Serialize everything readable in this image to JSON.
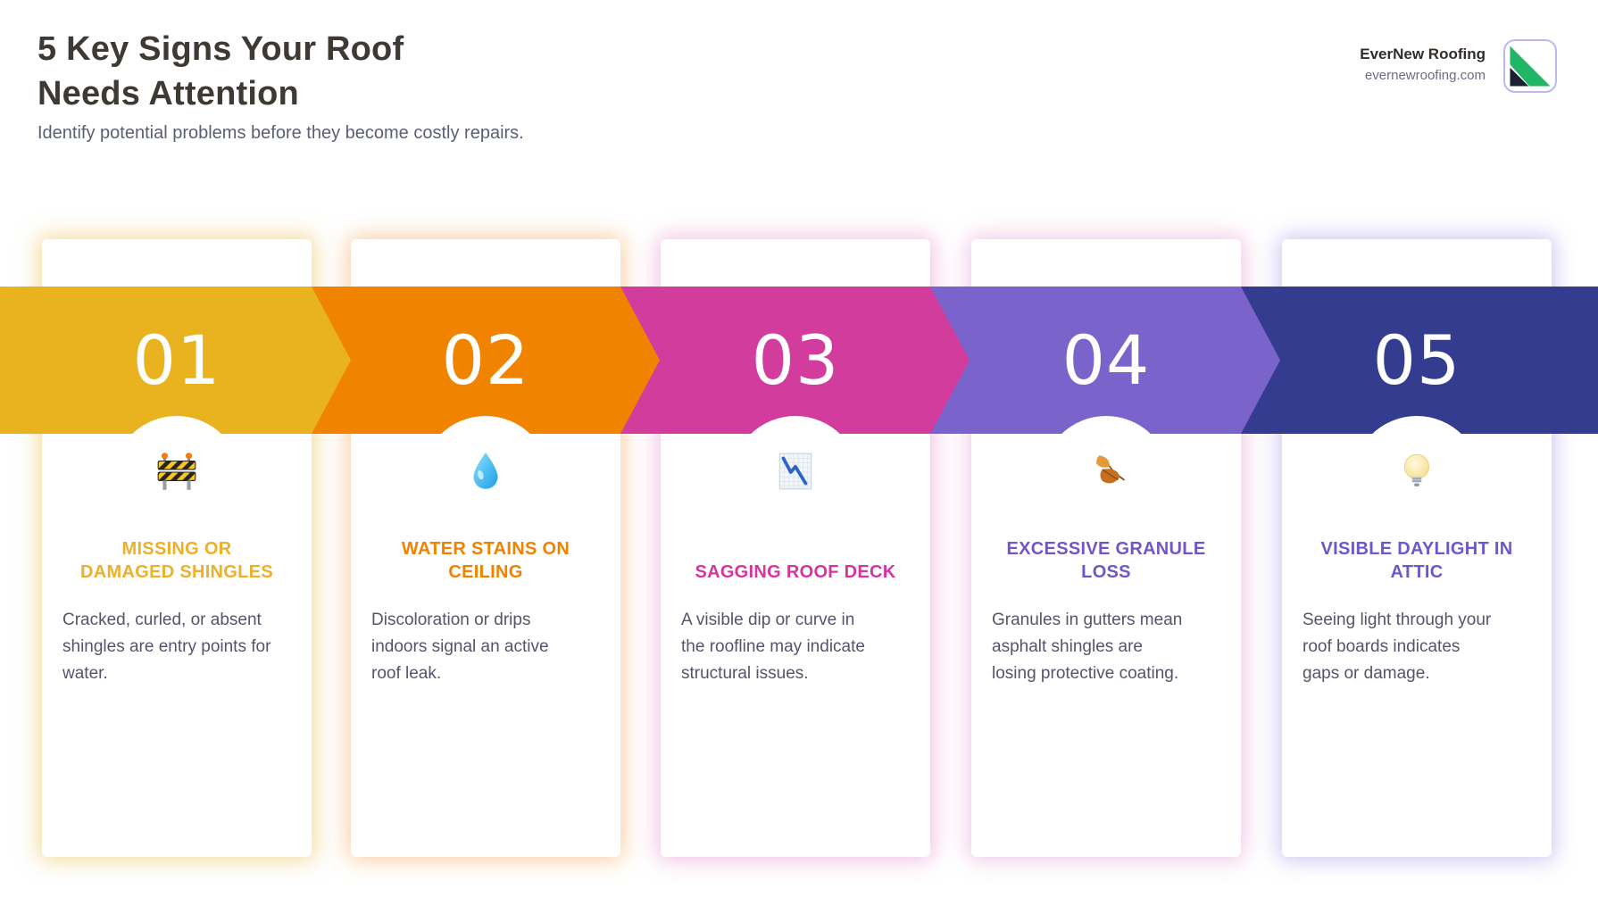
{
  "header": {
    "title_lines": [
      "5 Key Signs Your Roof",
      "Needs Attention"
    ],
    "subtitle": "Identify potential problems before they become costly repairs.",
    "title_color": "#3E3933",
    "subtitle_color": "#5C5E76",
    "brand": {
      "name": "EverNew Roofing",
      "website": "evernewroofing.com",
      "logo_icon": "roof-diagonal-icon",
      "logo_green": "#21B566",
      "logo_dark": "#1B2032",
      "logo_border": "#BDB7EF"
    }
  },
  "band": {
    "number_text_color": "#FFFFFF"
  },
  "cards": [
    {
      "number": "01",
      "icon": "construction-barrier-icon",
      "title_lines": [
        "MISSING OR",
        "DAMAGED SHINGLES"
      ],
      "description_lines": [
        "Cracked, curled, or absent",
        "shingles are entry points for",
        "water."
      ],
      "band_color": "#E8B31E",
      "title_color": "#EDB02A",
      "glow_color": "rgba(235,185,60,0.5)"
    },
    {
      "number": "02",
      "icon": "water-droplet-icon",
      "title_lines": [
        "WATER STAINS ON",
        "CEILING"
      ],
      "description_lines": [
        "Discoloration or drips",
        "indoors signal an active",
        "roof leak."
      ],
      "band_color": "#F08300",
      "title_color": "#F08200",
      "glow_color": "rgba(244,150,60,0.45)"
    },
    {
      "number": "03",
      "icon": "chart-decreasing-icon",
      "title_lines": [
        "SAGGING ROOF DECK"
      ],
      "description_lines": [
        "A visible dip or curve in",
        "the roofline may indicate",
        "structural issues."
      ],
      "band_color": "#D23C9D",
      "title_color": "#D6359E",
      "glow_color": "rgba(226,120,190,0.45)"
    },
    {
      "number": "04",
      "icon": "fallen-leaves-icon",
      "title_lines": [
        "EXCESSIVE GRANULE",
        "LOSS"
      ],
      "description_lines": [
        "Granules in gutters mean",
        "asphalt shingles are",
        "losing protective coating."
      ],
      "band_color": "#7A63CA",
      "title_color": "#7156C8",
      "glow_color": "rgba(224,136,200,0.45)"
    },
    {
      "number": "05",
      "icon": "light-bulb-icon",
      "title_lines": [
        "VISIBLE DAYLIGHT IN",
        "ATTIC"
      ],
      "description_lines": [
        "Seeing light through your",
        "roof boards indicates",
        "gaps or damage."
      ],
      "band_color": "#333C8E",
      "title_color": "#6A58D0",
      "glow_color": "rgba(150,130,225,0.45)"
    }
  ]
}
